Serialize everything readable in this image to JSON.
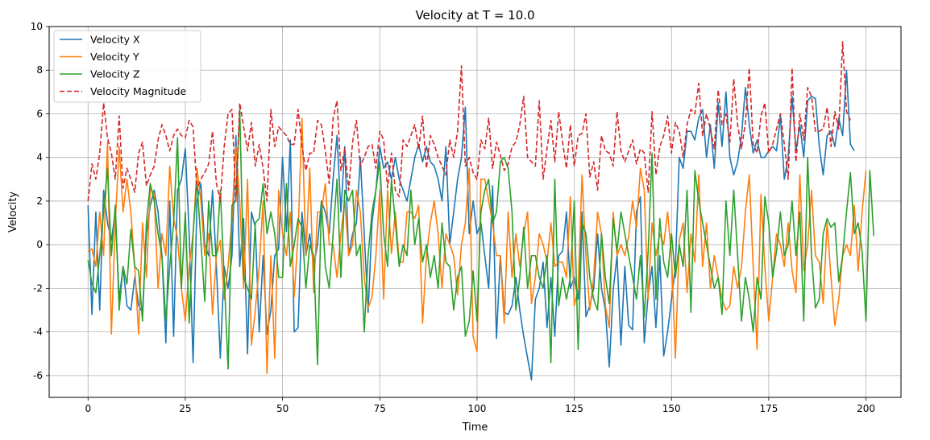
{
  "chart_data": {
    "type": "line",
    "title": "Velocity at T = 10.0",
    "xlabel": "Time",
    "ylabel": "Velocity",
    "xlim": [
      -10,
      209
    ],
    "ylim": [
      -7,
      10
    ],
    "xticks": [
      0,
      25,
      50,
      75,
      100,
      125,
      150,
      175,
      200
    ],
    "yticks": [
      -6,
      -4,
      -2,
      0,
      2,
      4,
      6,
      8,
      10
    ],
    "grid": true,
    "legend": "top-left",
    "series": [
      {
        "name": "Velocity X",
        "color": "#1f77b4",
        "style": "solid",
        "values": [
          1.8,
          -3.2,
          1.5,
          -3.0,
          2.5,
          1.0,
          0.2,
          1.5,
          -2.5,
          -1.0,
          -2.8,
          -3.0,
          -1.5,
          -2.8,
          -3.1,
          0.5,
          1.8,
          2.5,
          1.5,
          -0.5,
          -4.5,
          2.0,
          -4.2,
          2.5,
          3.0,
          4.4,
          0.5,
          -5.4,
          2.0,
          2.8,
          0.0,
          -0.5,
          2.5,
          -1.0,
          -5.2,
          -1.0,
          -2.0,
          -0.5,
          5.0,
          -1.0,
          1.2,
          -5.0,
          1.5,
          0.8,
          -4.0,
          -0.5,
          -4.1,
          -3.0,
          -0.5,
          -0.2,
          4.0,
          0.6,
          4.8,
          -4.0,
          -3.8,
          1.5,
          -0.5,
          0.5,
          -1.0,
          0.0,
          2.0,
          1.5,
          0.5,
          3.0,
          5.0,
          1.5,
          4.5,
          -0.5,
          0.5,
          1.0,
          4.0,
          0.5,
          -3.1,
          1.0,
          2.5,
          4.5,
          3.5,
          3.8,
          3.0,
          4.0,
          3.0,
          2.5,
          2.0,
          3.0,
          4.0,
          4.6,
          3.8,
          4.5,
          3.8,
          3.6,
          3.0,
          2.0,
          4.5,
          0.0,
          1.5,
          3.0,
          4.0,
          6.3,
          0.5,
          2.0,
          0.5,
          1.0,
          -0.5,
          -2.0,
          2.7,
          -4.3,
          -0.5,
          -3.1,
          -3.2,
          -2.8,
          -1.5,
          -3.0,
          -4.2,
          -5.2,
          -6.2,
          -2.5,
          -2.0,
          -0.8,
          -3.8,
          -1.5,
          -4.2,
          -0.5,
          -0.3,
          1.5,
          -2.0,
          -1.5,
          -2.5,
          1.5,
          -3.3,
          -2.8,
          -2.0,
          0.5,
          -2.0,
          -3.0,
          -5.6,
          -2.1,
          -0.5,
          -4.6,
          -1.0,
          -3.7,
          -3.9,
          1.5,
          2.2,
          -4.5,
          -2.3,
          -1.0,
          -3.8,
          -0.5,
          -5.1,
          -4.0,
          -2.5,
          -1.0,
          4.0,
          3.5,
          5.2,
          5.2,
          4.8,
          5.8,
          6.2,
          4.0,
          5.5,
          3.5,
          6.5,
          4.5,
          7.0,
          4.0,
          3.2,
          3.8,
          5.0,
          7.2,
          5.5,
          4.2,
          4.8,
          4.0,
          4.0,
          4.3,
          4.5,
          4.3,
          5.9,
          3.0,
          4.0,
          6.8,
          4.3,
          5.5,
          4.0,
          6.6,
          6.8,
          6.7,
          4.5,
          3.2,
          5.0,
          5.2,
          4.5,
          5.8,
          5.0,
          8.0,
          4.6,
          4.3
        ]
      },
      {
        "name": "Velocity Y",
        "color": "#ff7f0e",
        "style": "solid",
        "values": [
          -0.3,
          -0.2,
          -1.0,
          1.5,
          -0.5,
          4.7,
          -4.1,
          1.0,
          4.5,
          1.5,
          3.0,
          1.5,
          -1.0,
          -4.1,
          1.0,
          -1.5,
          2.6,
          2.3,
          -2.0,
          0.5,
          -0.5,
          3.6,
          1.2,
          0.3,
          -2.0,
          -3.5,
          -1.0,
          0.5,
          3.5,
          2.0,
          -0.5,
          0.5,
          -3.2,
          -0.5,
          0.2,
          -2.5,
          -1.0,
          1.2,
          4.5,
          2.0,
          -2.0,
          3.0,
          -4.6,
          -3.0,
          -1.0,
          2.0,
          -5.9,
          -0.5,
          -5.2,
          2.5,
          0.5,
          -0.5,
          1.5,
          -2.4,
          0.5,
          5.8,
          -0.5,
          3.5,
          -2.2,
          1.5,
          1.5,
          2.8,
          0.0,
          0.0,
          -1.5,
          0.5,
          2.0,
          -0.5,
          0.0,
          2.5,
          1.5,
          -1.5,
          -2.9,
          -2.4,
          -0.5,
          2.5,
          -2.5,
          2.5,
          -0.4,
          1.5,
          -0.8,
          -0.8,
          1.5,
          1.5,
          1.2,
          1.8,
          -3.6,
          -0.5,
          1.0,
          2.0,
          0.5,
          -2.0,
          0.5,
          0.0,
          -0.5,
          -2.3,
          0.0,
          1.0,
          3.5,
          -4.2,
          -4.9,
          3.0,
          3.0,
          2.0,
          1.0,
          -0.5,
          -0.5,
          -3.6,
          1.5,
          -1.5,
          0.5,
          -1.0,
          0.5,
          1.5,
          -2.7,
          -1.5,
          0.5,
          0.0,
          -0.8,
          1.0,
          -1.0,
          -0.8,
          -0.8,
          -1.5,
          2.2,
          -2.8,
          -2.0,
          3.2,
          -0.5,
          -3.0,
          -1.5,
          1.5,
          0.5,
          -2.8,
          -3.8,
          1.5,
          -0.5,
          0.0,
          -0.5,
          0.4,
          2.0,
          0.8,
          3.5,
          2.5,
          -2.5,
          1.0,
          -0.5,
          0.5,
          0.0,
          1.5,
          -0.5,
          -5.2,
          0.2,
          1.0,
          -2.2,
          0.5,
          -0.8,
          3.2,
          -1.0,
          1.0,
          -2.0,
          -0.5,
          -1.5,
          -2.5,
          -3.0,
          -2.8,
          -1.0,
          -2.0,
          -1.0,
          1.5,
          3.2,
          -1.0,
          -4.8,
          2.3,
          -1.0,
          -3.5,
          -1.5,
          0.5,
          0.0,
          -1.0,
          1.0,
          -1.2,
          -2.2,
          3.2,
          -1.2,
          0.0,
          2.5,
          -0.5,
          -0.8,
          -2.7,
          1.0,
          -1.5,
          -3.7,
          -2.5,
          -0.5,
          0.0,
          -0.5,
          1.8,
          -1.2,
          1.5,
          3.4
        ]
      },
      {
        "name": "Velocity Z",
        "color": "#2ca02c",
        "style": "solid",
        "values": [
          -0.7,
          -1.8,
          -2.2,
          -0.5,
          1.5,
          3.5,
          -0.5,
          1.8,
          -3.0,
          -1.0,
          -1.8,
          0.7,
          -1.0,
          -1.2,
          -3.5,
          1.0,
          2.8,
          2.0,
          0.5,
          -0.5,
          -3.5,
          -1.0,
          1.0,
          4.9,
          -2.0,
          1.5,
          -3.6,
          0.5,
          2.9,
          0.2,
          -2.6,
          2.0,
          -0.5,
          -0.5,
          2.5,
          -1.5,
          -5.7,
          1.8,
          2.0,
          6.2,
          -1.5,
          -2.0,
          -2.5,
          1.0,
          1.2,
          2.8,
          0.5,
          1.5,
          0.5,
          -1.5,
          -1.5,
          2.8,
          -1.0,
          0.0,
          1.2,
          0.8,
          -2.0,
          0.0,
          -0.5,
          -5.5,
          2.0,
          -1.0,
          -2.0,
          0.5,
          3.0,
          -1.5,
          2.5,
          2.0,
          2.5,
          -0.5,
          0.0,
          -4.0,
          -0.5,
          1.5,
          2.5,
          3.8,
          0.5,
          -1.0,
          3.0,
          1.0,
          -1.0,
          0.0,
          -0.5,
          2.5,
          0.0,
          1.2,
          -0.8,
          0.0,
          -1.5,
          -0.5,
          -2.0,
          1.0,
          -0.8,
          -1.0,
          -3.0,
          -1.5,
          -1.0,
          -4.2,
          -3.5,
          -1.2,
          -3.5,
          1.5,
          2.5,
          3.0,
          1.0,
          1.5,
          3.8,
          4.0,
          3.5,
          1.5,
          -3.0,
          -1.5,
          0.8,
          -2.0,
          -0.5,
          -0.5,
          -1.5,
          -2.0,
          -0.5,
          -5.4,
          3.0,
          -2.8,
          -1.5,
          -2.5,
          -1.5,
          2.0,
          -4.8,
          1.0,
          0.5,
          -1.5,
          -2.5,
          -3.0,
          0.5,
          -1.5,
          -2.7,
          1.2,
          -0.3,
          1.5,
          0.5,
          -0.5,
          -1.5,
          -2.5,
          -0.5,
          -3.3,
          -0.3,
          4.2,
          -2.5,
          1.2,
          -0.8,
          -1.5,
          0.5,
          -1.5,
          0.0,
          -1.0,
          2.5,
          -3.1,
          3.4,
          2.0,
          1.0,
          0.0,
          -1.0,
          -2.0,
          -1.5,
          -3.2,
          2.0,
          -0.5,
          2.5,
          -0.5,
          -3.5,
          -1.5,
          -2.5,
          -4.0,
          -1.5,
          -2.5,
          2.2,
          1.0,
          -1.5,
          -0.3,
          1.5,
          -0.5,
          0.0,
          2.0,
          -0.5,
          1.5,
          -3.5,
          4.0,
          -0.5,
          -2.9,
          -2.5,
          0.5,
          1.2,
          0.8,
          1.0,
          -1.7,
          -0.5,
          1.5,
          3.3,
          0.5,
          1.0,
          -0.3,
          -3.5,
          3.4,
          0.4
        ]
      },
      {
        "name": "Velocity Magnitude",
        "color": "#d62728",
        "style": "dashed",
        "values": [
          2.0,
          3.7,
          3.0,
          4.2,
          6.5,
          4.9,
          4.2,
          3.0,
          5.9,
          2.6,
          3.5,
          3.0,
          2.4,
          4.2,
          4.7,
          2.7,
          3.2,
          3.6,
          4.8,
          5.5,
          5.0,
          4.3,
          5.0,
          5.3,
          5.0,
          4.9,
          5.7,
          5.4,
          2.5,
          3.0,
          3.3,
          3.7,
          5.2,
          2.8,
          2.0,
          4.5,
          6.0,
          6.2,
          2.0,
          6.5,
          5.4,
          4.3,
          5.6,
          3.6,
          4.6,
          3.5,
          2.0,
          6.2,
          4.5,
          5.4,
          5.2,
          5.0,
          4.6,
          4.6,
          6.2,
          4.5,
          3.4,
          4.2,
          4.2,
          5.7,
          5.5,
          4.3,
          2.8,
          5.8,
          6.6,
          3.4,
          4.4,
          2.5,
          4.7,
          5.7,
          3.6,
          4.0,
          4.5,
          4.6,
          3.5,
          5.2,
          4.8,
          2.6,
          4.2,
          2.5,
          2.2,
          4.8,
          4.5,
          5.0,
          5.5,
          4.4,
          5.9,
          3.5,
          5.0,
          4.6,
          4.0,
          3.6,
          3.2,
          4.8,
          4.0,
          5.2,
          8.2,
          3.6,
          4.0,
          3.3,
          3.0,
          4.8,
          4.4,
          5.8,
          3.5,
          4.7,
          4.1,
          3.4,
          3.7,
          4.5,
          4.7,
          5.5,
          6.8,
          4.0,
          3.8,
          3.6,
          6.6,
          3.0,
          4.4,
          5.7,
          3.8,
          6.1,
          4.7,
          3.5,
          5.5,
          3.6,
          5.0,
          5.1,
          6.0,
          3.1,
          3.8,
          2.5,
          5.0,
          4.3,
          4.2,
          3.6,
          6.1,
          4.3,
          3.8,
          4.3,
          4.8,
          3.7,
          4.4,
          4.2,
          2.4,
          6.1,
          3.2,
          4.5,
          5.0,
          5.9,
          4.2,
          5.6,
          5.2,
          4.0,
          5.5,
          6.2,
          6.0,
          7.4,
          5.0,
          6.0,
          5.3,
          4.4,
          7.1,
          5.5,
          6.0,
          4.7,
          7.6,
          5.5,
          4.4,
          5.6,
          8.1,
          4.6,
          4.2,
          5.9,
          6.5,
          4.2,
          4.6,
          5.3,
          6.0,
          4.6,
          3.0,
          8.1,
          3.8,
          6.0,
          4.8,
          7.2,
          6.8,
          5.2,
          5.2,
          5.3,
          6.3,
          4.5,
          6.1,
          5.3,
          9.3,
          6.1,
          5.7
        ]
      }
    ]
  }
}
